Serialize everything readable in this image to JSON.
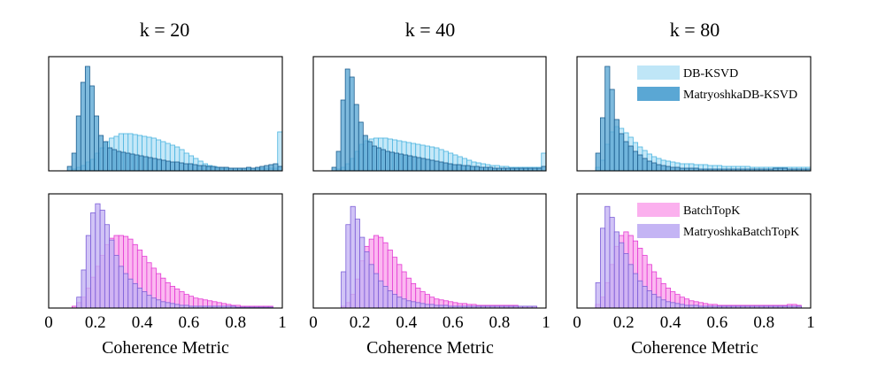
{
  "figure": {
    "column_titles": [
      "k = 20",
      "k = 40",
      "k = 80"
    ],
    "x_axis_label": "Coherence Metric",
    "tick_labels": [
      "0",
      "0.2",
      "0.4",
      "0.6",
      "0.8",
      "1"
    ]
  },
  "colors": {
    "db_ksvd_fill": "#bfe6f7",
    "db_ksvd_stroke": "#4bb4e0",
    "matryoshka_db_ksvd_fill": "#5aa7d4",
    "matryoshka_db_ksvd_stroke": "#1f5f8f",
    "batchtopk_fill": "#fbb0ee",
    "batchtopk_stroke": "#e33ad4",
    "matryoshka_batchtopk_fill": "#c4b4f4",
    "matryoshka_batchtopk_stroke": "#7d5fd8"
  },
  "chart_data": [
    {
      "type": "histogram",
      "row": "top",
      "column_title": "k = 20",
      "xlabel": "",
      "xlim": [
        0,
        1
      ],
      "legend": null,
      "series": [
        {
          "name": "DB-KSVD",
          "bin_edges_range": [
            0.1,
            1.0
          ],
          "values": [
            2,
            4,
            6,
            10,
            13,
            20,
            26,
            33,
            37,
            39,
            42,
            42,
            42,
            41,
            40,
            39,
            38,
            37,
            35,
            33,
            31,
            29,
            27,
            24,
            20,
            17,
            14,
            11,
            8,
            6,
            5,
            4,
            3,
            3,
            3,
            3,
            3,
            3,
            3,
            3,
            3,
            3,
            3,
            3,
            44
          ]
        },
        {
          "name": "MatryoshkaDB-KSVD",
          "bin_edges_range": [
            0.08,
            1.0
          ],
          "values": [
            5,
            20,
            62,
            100,
            118,
            96,
            62,
            40,
            33,
            26,
            24,
            22,
            21,
            20,
            19,
            18,
            17,
            16,
            15,
            14,
            13,
            12,
            11,
            10,
            10,
            9,
            8,
            8,
            7,
            6,
            6,
            5,
            5,
            4,
            4,
            4,
            3,
            3,
            3,
            3,
            4,
            3,
            4,
            5,
            6,
            7,
            8,
            5
          ]
        }
      ]
    },
    {
      "type": "histogram",
      "row": "top",
      "column_title": "k = 40",
      "xlabel": "",
      "xlim": [
        0,
        1
      ],
      "legend": null,
      "series": [
        {
          "name": "DB-KSVD",
          "bin_edges_range": [
            0.1,
            1.0
          ],
          "values": [
            2,
            4,
            8,
            14,
            22,
            30,
            34,
            36,
            37,
            37,
            37,
            36,
            35,
            34,
            33,
            32,
            31,
            30,
            29,
            28,
            27,
            26,
            24,
            22,
            20,
            18,
            16,
            14,
            12,
            10,
            9,
            8,
            7,
            6,
            6,
            5,
            5,
            4,
            4,
            4,
            4,
            4,
            4,
            4,
            20
          ]
        },
        {
          "name": "MatryoshkaDB-KSVD",
          "bin_edges_range": [
            0.08,
            1.0
          ],
          "values": [
            4,
            22,
            80,
            115,
            106,
            75,
            55,
            40,
            33,
            28,
            26,
            24,
            22,
            21,
            20,
            19,
            18,
            17,
            16,
            15,
            14,
            13,
            12,
            11,
            10,
            9,
            8,
            7,
            7,
            6,
            6,
            5,
            5,
            4,
            4,
            4,
            3,
            3,
            3,
            3,
            3,
            3,
            3,
            3,
            3,
            3,
            3,
            5
          ]
        }
      ]
    },
    {
      "type": "histogram",
      "row": "top",
      "column_title": "k = 80",
      "xlabel": "",
      "xlim": [
        0,
        1
      ],
      "legend": {
        "entries": [
          "DB-KSVD",
          "MatryoshkaDB-KSVD"
        ],
        "position": "top-right"
      },
      "series": [
        {
          "name": "DB-KSVD",
          "bin_edges_range": [
            0.08,
            1.0
          ],
          "values": [
            4,
            12,
            30,
            44,
            50,
            48,
            43,
            38,
            32,
            27,
            23,
            19,
            16,
            14,
            12,
            11,
            10,
            9,
            8,
            8,
            8,
            7,
            7,
            7,
            6,
            6,
            6,
            5,
            5,
            5,
            5,
            5,
            5,
            4,
            4,
            4,
            4,
            4,
            4,
            4,
            4,
            4,
            4,
            4,
            4,
            4
          ]
        },
        {
          "name": "MatryoshkaDB-KSVD",
          "bin_edges_range": [
            0.08,
            1.0
          ],
          "values": [
            20,
            60,
            118,
            92,
            58,
            42,
            33,
            28,
            22,
            18,
            14,
            11,
            9,
            7,
            6,
            5,
            4,
            4,
            3,
            3,
            3,
            3,
            2,
            2,
            2,
            2,
            2,
            2,
            2,
            2,
            2,
            2,
            2,
            2,
            2,
            2,
            2,
            2,
            3,
            3,
            3,
            2,
            2,
            2,
            2,
            2
          ]
        }
      ]
    },
    {
      "type": "histogram",
      "row": "bottom",
      "column_title": "k = 20",
      "xlabel": "Coherence Metric",
      "xlim": [
        0,
        1
      ],
      "legend": null,
      "series": [
        {
          "name": "BatchTopK",
          "bin_edges_range": [
            0.1,
            0.96
          ],
          "values": [
            2,
            6,
            12,
            22,
            34,
            46,
            58,
            70,
            77,
            80,
            80,
            79,
            76,
            70,
            64,
            57,
            50,
            44,
            38,
            33,
            28,
            24,
            21,
            18,
            15,
            13,
            11,
            10,
            9,
            8,
            7,
            6,
            5,
            4,
            3,
            3,
            2,
            2,
            2,
            2,
            2,
            2,
            2
          ]
        },
        {
          "name": "MatryoshkaBatchTopK",
          "bin_edges_range": [
            0.12,
            0.96
          ],
          "values": [
            12,
            42,
            80,
            105,
            115,
            108,
            92,
            75,
            58,
            46,
            38,
            32,
            27,
            22,
            18,
            14,
            11,
            9,
            7,
            6,
            5,
            4,
            3,
            3,
            2,
            2,
            2,
            2,
            2,
            2,
            2,
            2,
            2,
            2,
            1,
            1,
            1,
            1,
            1,
            1,
            1,
            1
          ]
        }
      ]
    },
    {
      "type": "histogram",
      "row": "bottom",
      "column_title": "k = 40",
      "xlabel": "Coherence Metric",
      "xlim": [
        0,
        1
      ],
      "legend": null,
      "series": [
        {
          "name": "BatchTopK",
          "bin_edges_range": [
            0.12,
            0.96
          ],
          "values": [
            2,
            6,
            15,
            32,
            52,
            68,
            76,
            80,
            78,
            72,
            64,
            56,
            48,
            40,
            33,
            27,
            22,
            18,
            15,
            12,
            10,
            9,
            8,
            7,
            6,
            5,
            5,
            4,
            4,
            3,
            3,
            3,
            3,
            3,
            3,
            3,
            3,
            3,
            2,
            2,
            2,
            2
          ]
        },
        {
          "name": "MatryoshkaBatchTopK",
          "bin_edges_range": [
            0.12,
            0.96
          ],
          "values": [
            40,
            92,
            112,
            98,
            78,
            62,
            48,
            38,
            30,
            24,
            19,
            15,
            12,
            10,
            8,
            7,
            6,
            5,
            4,
            4,
            3,
            3,
            3,
            2,
            2,
            2,
            2,
            2,
            2,
            2,
            2,
            2,
            2,
            2,
            2,
            2,
            2,
            2,
            2,
            2,
            2,
            2
          ]
        }
      ]
    },
    {
      "type": "histogram",
      "row": "bottom",
      "column_title": "k = 80",
      "xlabel": "Coherence Metric",
      "xlim": [
        0,
        1
      ],
      "legend": {
        "entries": [
          "BatchTopK",
          "MatryoshkaBatchTopK"
        ],
        "position": "top-right"
      },
      "series": [
        {
          "name": "BatchTopK",
          "bin_edges_range": [
            0.08,
            0.96
          ],
          "values": [
            4,
            12,
            28,
            48,
            68,
            80,
            84,
            80,
            74,
            66,
            58,
            48,
            40,
            33,
            27,
            22,
            18,
            15,
            12,
            10,
            8,
            7,
            6,
            5,
            4,
            4,
            3,
            3,
            3,
            3,
            3,
            3,
            3,
            3,
            3,
            3,
            3,
            3,
            3,
            3,
            3,
            4,
            4,
            3
          ]
        },
        {
          "name": "MatryoshkaBatchTopK",
          "bin_edges_range": [
            0.08,
            0.96
          ],
          "values": [
            28,
            88,
            112,
            100,
            84,
            72,
            60,
            48,
            38,
            30,
            24,
            19,
            15,
            12,
            9,
            7,
            6,
            5,
            4,
            3,
            3,
            3,
            2,
            2,
            2,
            2,
            2,
            2,
            2,
            2,
            2,
            2,
            2,
            2,
            2,
            2,
            2,
            2,
            2,
            2,
            2,
            2,
            2,
            2
          ]
        }
      ]
    }
  ]
}
